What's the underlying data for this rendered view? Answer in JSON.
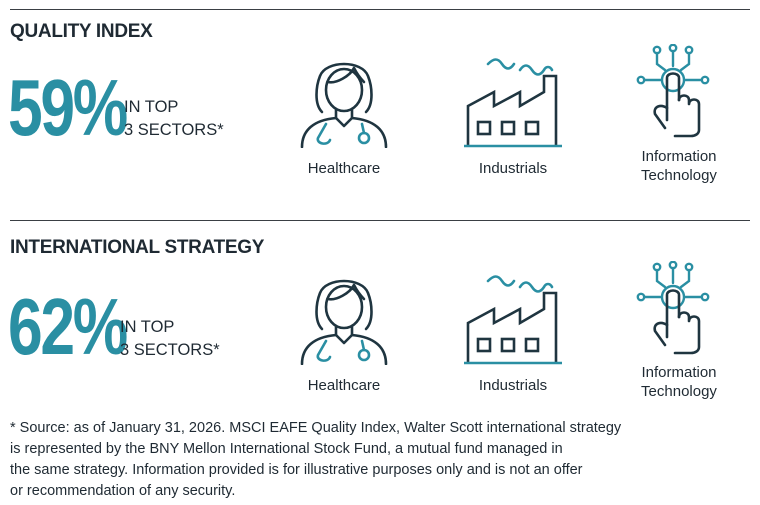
{
  "sections": [
    {
      "title": "QUALITY INDEX",
      "percent": "59%",
      "label_line1": "IN TOP",
      "label_line2": "3 SECTORS*",
      "sectors": [
        {
          "name": "Healthcare",
          "icon": "doctor-icon"
        },
        {
          "name": "Industrials",
          "icon": "factory-icon"
        },
        {
          "name_line1": "Information",
          "name_line2": "Technology",
          "icon": "touch-tech-icon"
        }
      ]
    },
    {
      "title": "INTERNATIONAL STRATEGY",
      "percent": "62%",
      "label_line1": "IN TOP",
      "label_line2": "3 SECTORS*",
      "sectors": [
        {
          "name": "Healthcare",
          "icon": "doctor-icon"
        },
        {
          "name": "Industrials",
          "icon": "factory-icon"
        },
        {
          "name_line1": "Information",
          "name_line2": "Technology",
          "icon": "touch-tech-icon"
        }
      ]
    }
  ],
  "footnote": {
    "line1": "* Source: as of January 31, 2026. MSCI EAFE Quality Index, Walter Scott international strategy",
    "line2": "is represented by the BNY Mellon International Stock Fund, a mutual fund managed in",
    "line3": "the same strategy. Information provided is for illustrative purposes only and is not an offer",
    "line4": "or recommendation of any security."
  },
  "colors": {
    "accent": "#2a8fa3",
    "dark": "#1f3540",
    "text": "#1f2a33"
  }
}
